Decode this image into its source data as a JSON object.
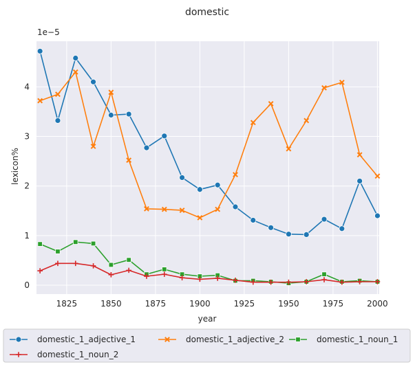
{
  "chart_data": {
    "type": "line",
    "title": "domestic",
    "xlabel": "year",
    "ylabel": "lexicon%",
    "y_multiplier_label": "1e−5",
    "x_ticks": [
      1825,
      1850,
      1875,
      1900,
      1925,
      1950,
      1975,
      2000
    ],
    "y_ticks": [
      0,
      1,
      2,
      3,
      4
    ],
    "xlim": [
      1808,
      2001
    ],
    "ylim": [
      -0.18,
      4.92
    ],
    "grid": true,
    "legend_position": "bottom",
    "x": [
      1810,
      1820,
      1830,
      1840,
      1850,
      1860,
      1870,
      1880,
      1890,
      1900,
      1910,
      1920,
      1930,
      1940,
      1950,
      1960,
      1970,
      1980,
      1990,
      2000
    ],
    "series": [
      {
        "name": "domestic_1_adjective_1",
        "color": "#1f77b4",
        "marker": "circle",
        "values": [
          4.72,
          3.32,
          4.58,
          4.1,
          3.43,
          3.45,
          2.77,
          3.01,
          2.17,
          1.93,
          2.02,
          1.58,
          1.31,
          1.16,
          1.03,
          1.02,
          1.33,
          1.14,
          2.1,
          1.4
        ]
      },
      {
        "name": "domestic_1_adjective_2",
        "color": "#ff7f0e",
        "marker": "x",
        "values": [
          3.72,
          3.85,
          4.3,
          2.8,
          3.89,
          2.52,
          1.54,
          1.53,
          1.51,
          1.36,
          1.53,
          2.23,
          3.28,
          3.66,
          2.75,
          3.32,
          3.98,
          4.09,
          2.63,
          2.2
        ]
      },
      {
        "name": "domestic_1_noun_1",
        "color": "#2ca02c",
        "marker": "square",
        "values": [
          0.83,
          0.68,
          0.87,
          0.84,
          0.41,
          0.51,
          0.22,
          0.32,
          0.22,
          0.18,
          0.2,
          0.09,
          0.09,
          0.07,
          0.04,
          0.07,
          0.22,
          0.07,
          0.09,
          0.07
        ]
      },
      {
        "name": "domestic_1_noun_2",
        "color": "#d62728",
        "marker": "plus",
        "values": [
          0.29,
          0.44,
          0.44,
          0.39,
          0.21,
          0.3,
          0.18,
          0.22,
          0.15,
          0.12,
          0.14,
          0.1,
          0.06,
          0.06,
          0.06,
          0.07,
          0.11,
          0.06,
          0.07,
          0.07
        ]
      }
    ]
  }
}
